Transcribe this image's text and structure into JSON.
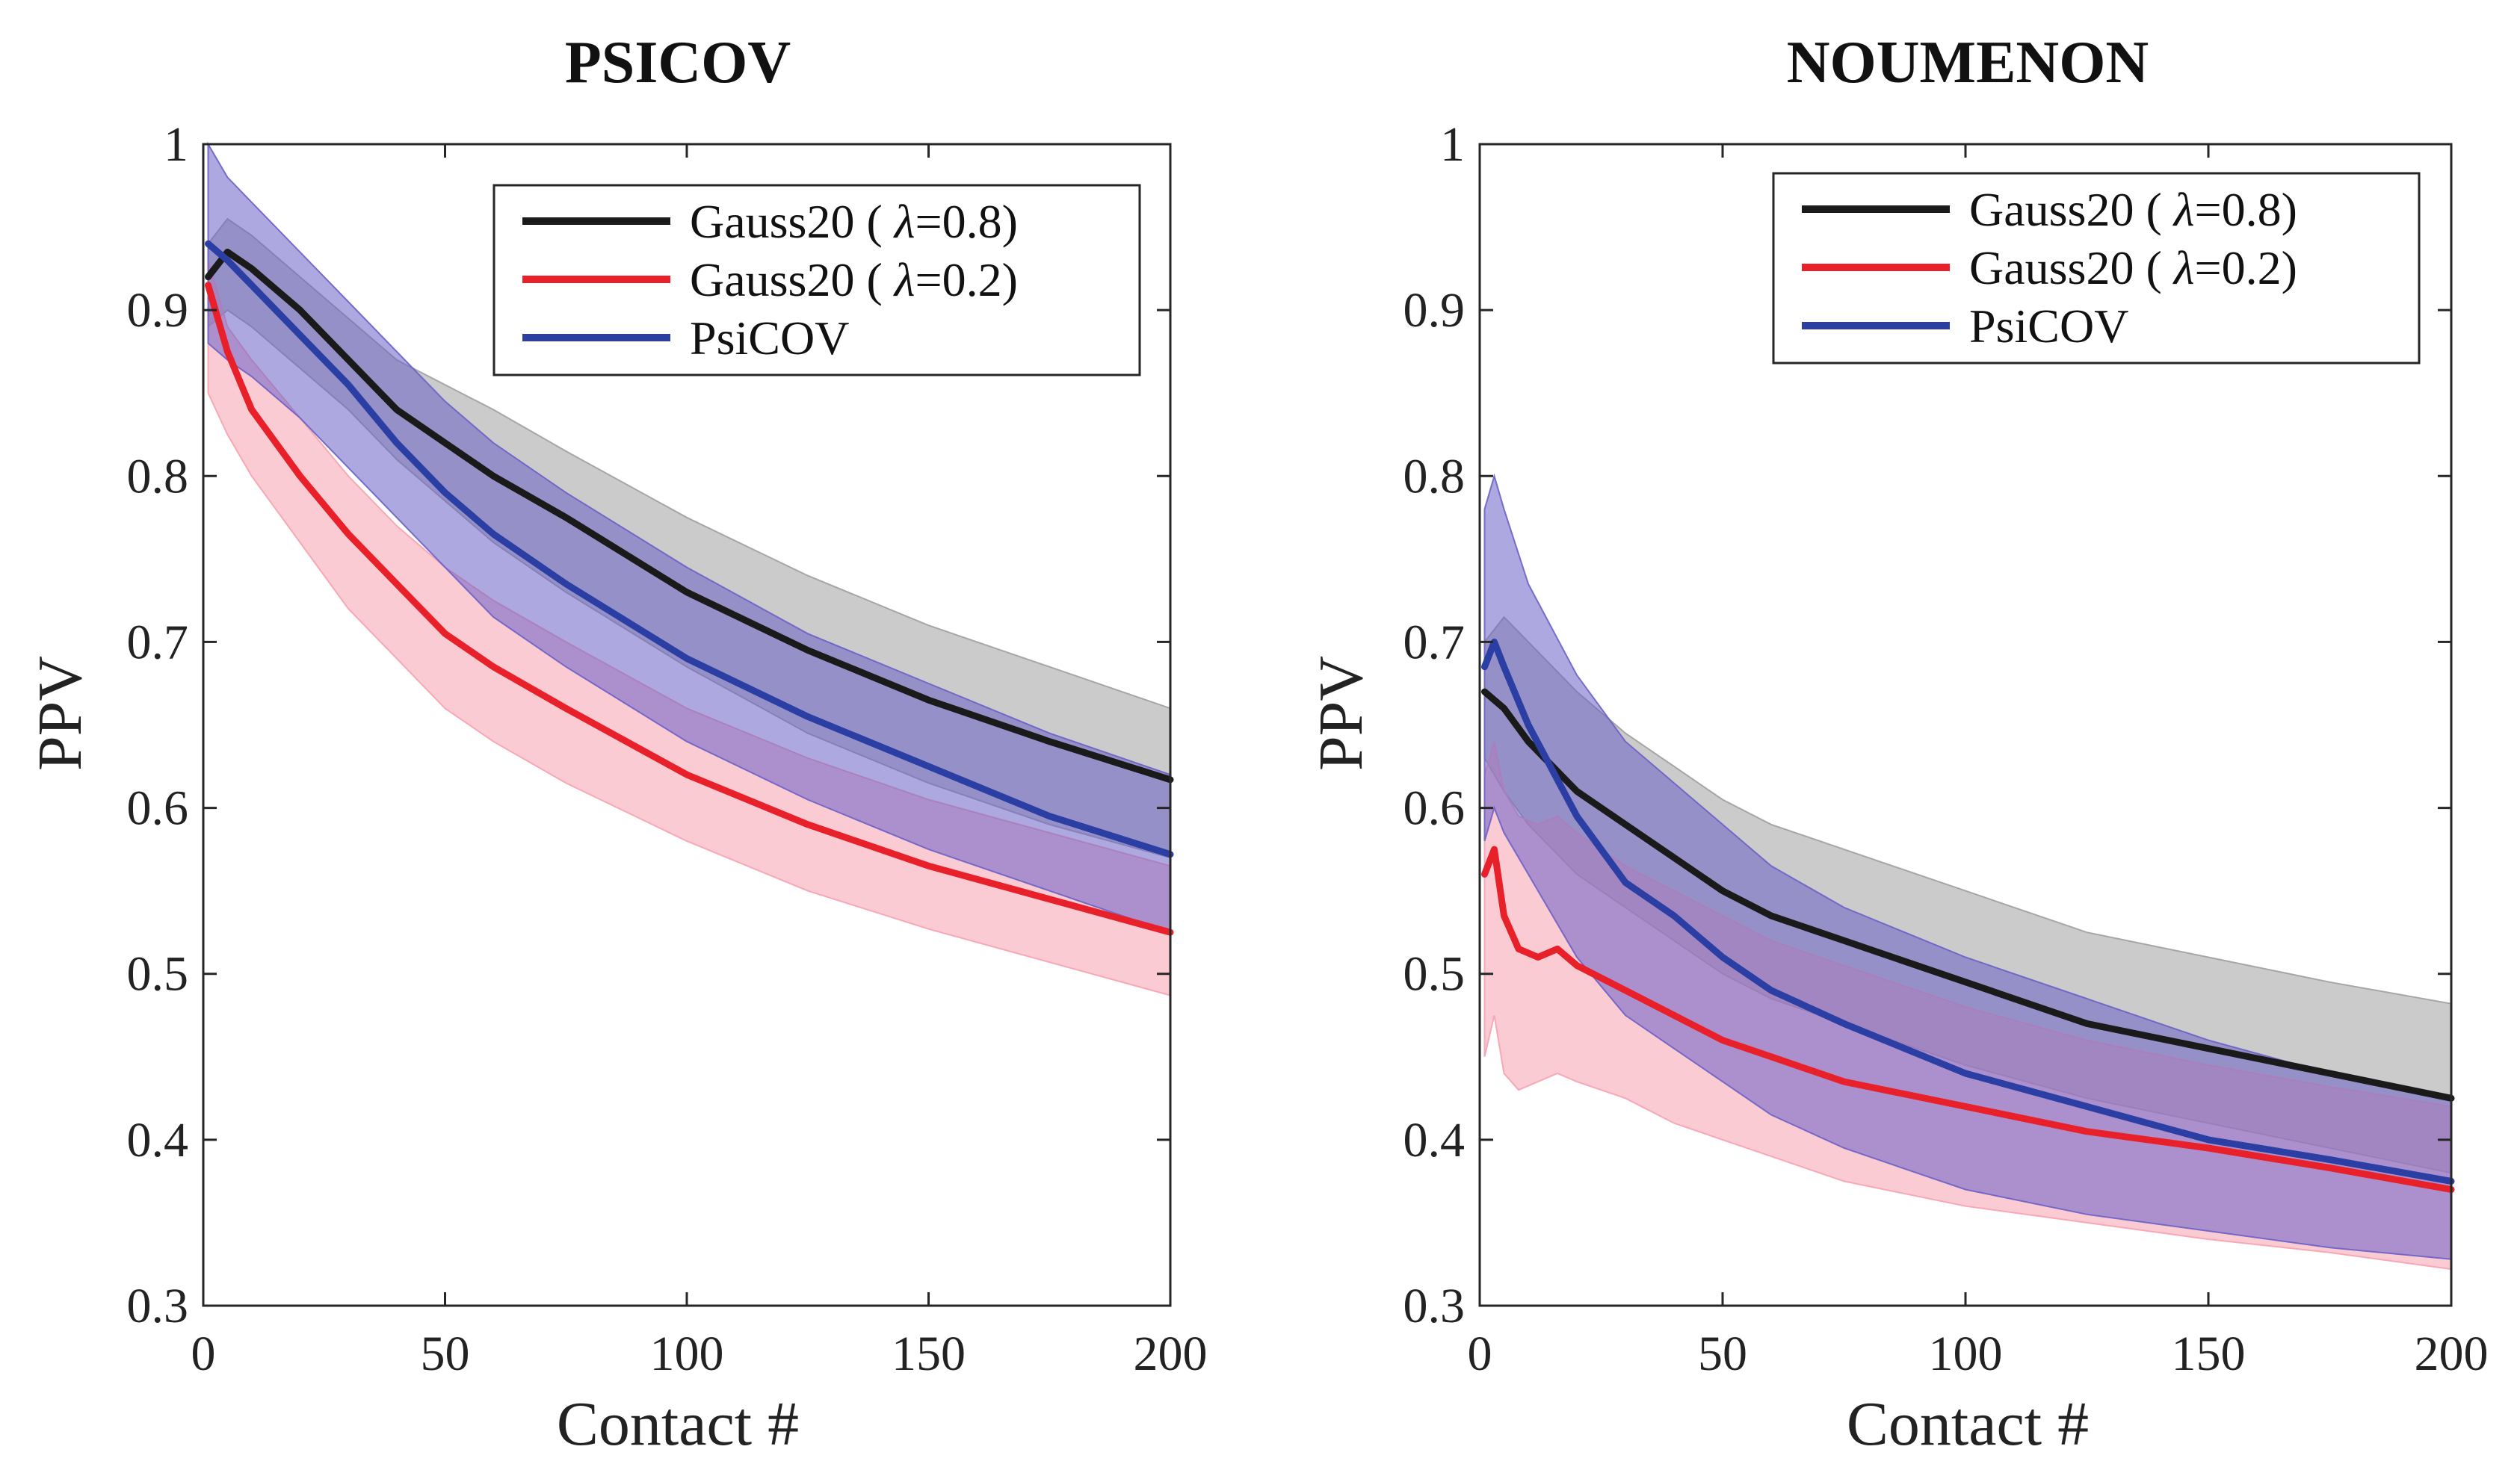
{
  "chart_data": [
    {
      "type": "line",
      "title": "PSICOV",
      "xlabel": "Contact #",
      "ylabel": "PPV",
      "xlim": [
        0,
        200
      ],
      "ylim": [
        0.3,
        1.0
      ],
      "xticks": [
        0,
        50,
        100,
        150,
        200
      ],
      "yticks": [
        0.3,
        0.4,
        0.5,
        0.6,
        0.7,
        0.8,
        0.9,
        1.0
      ],
      "ytick_labels": [
        "0.3",
        "0.4",
        "0.5",
        "0.6",
        "0.7",
        "0.8",
        "0.9",
        "1"
      ],
      "legend_position": "top-right",
      "series": [
        {
          "name": "Gauss20 (λ=0.8)",
          "label_prefix": "Gauss20 ( ",
          "label_symbol": "λ",
          "label_suffix": "=0.8)",
          "color": "#1a1a1a",
          "band_color": "#a0a0a0",
          "x": [
            1,
            5,
            10,
            20,
            30,
            40,
            50,
            60,
            75,
            100,
            125,
            150,
            175,
            200
          ],
          "values": [
            0.92,
            0.935,
            0.925,
            0.9,
            0.87,
            0.84,
            0.82,
            0.8,
            0.775,
            0.73,
            0.695,
            0.665,
            0.64,
            0.617
          ],
          "upper": [
            0.94,
            0.955,
            0.945,
            0.92,
            0.895,
            0.87,
            0.855,
            0.84,
            0.815,
            0.775,
            0.74,
            0.71,
            0.685,
            0.66
          ],
          "lower": [
            0.89,
            0.9,
            0.89,
            0.865,
            0.84,
            0.81,
            0.785,
            0.76,
            0.73,
            0.685,
            0.645,
            0.615,
            0.59,
            0.57
          ]
        },
        {
          "name": "Gauss20 (λ=0.2)",
          "label_prefix": "Gauss20 ( ",
          "label_symbol": "λ",
          "label_suffix": "=0.2)",
          "color": "#e8202a",
          "band_color": "#f7a1b0",
          "x": [
            1,
            5,
            10,
            20,
            30,
            40,
            50,
            60,
            75,
            100,
            125,
            150,
            175,
            200
          ],
          "values": [
            0.915,
            0.875,
            0.84,
            0.8,
            0.765,
            0.735,
            0.705,
            0.685,
            0.66,
            0.62,
            0.59,
            0.565,
            0.545,
            0.525
          ],
          "upper": [
            0.93,
            0.89,
            0.87,
            0.835,
            0.8,
            0.77,
            0.745,
            0.725,
            0.7,
            0.66,
            0.63,
            0.605,
            0.585,
            0.565
          ],
          "lower": [
            0.85,
            0.825,
            0.8,
            0.76,
            0.72,
            0.69,
            0.66,
            0.64,
            0.615,
            0.58,
            0.55,
            0.527,
            0.507,
            0.487
          ]
        },
        {
          "name": "PsiCOV",
          "label_prefix": "PsiCOV",
          "label_symbol": "",
          "label_suffix": "",
          "color": "#2b3ea3",
          "band_color": "#6b61c6",
          "x": [
            1,
            5,
            10,
            20,
            30,
            40,
            50,
            60,
            75,
            100,
            125,
            150,
            175,
            200
          ],
          "values": [
            0.94,
            0.93,
            0.915,
            0.885,
            0.855,
            0.82,
            0.79,
            0.765,
            0.735,
            0.69,
            0.655,
            0.625,
            0.595,
            0.572
          ],
          "upper": [
            1.0,
            0.98,
            0.965,
            0.935,
            0.905,
            0.875,
            0.845,
            0.82,
            0.79,
            0.745,
            0.705,
            0.675,
            0.645,
            0.62
          ],
          "lower": [
            0.88,
            0.87,
            0.86,
            0.835,
            0.805,
            0.775,
            0.745,
            0.715,
            0.685,
            0.64,
            0.605,
            0.575,
            0.55,
            0.525
          ]
        }
      ]
    },
    {
      "type": "line",
      "title": "NOUMENON",
      "xlabel": "Contact #",
      "ylabel": "PPV",
      "xlim": [
        0,
        200
      ],
      "ylim": [
        0.3,
        1.0
      ],
      "xticks": [
        0,
        50,
        100,
        150,
        200
      ],
      "yticks": [
        0.3,
        0.4,
        0.5,
        0.6,
        0.7,
        0.8,
        0.9,
        1.0
      ],
      "ytick_labels": [
        "0.3",
        "0.4",
        "0.5",
        "0.6",
        "0.7",
        "0.8",
        "0.9",
        "1"
      ],
      "legend_position": "top-right",
      "series": [
        {
          "name": "Gauss20 (λ=0.8)",
          "label_prefix": "Gauss20 ( ",
          "label_symbol": "λ",
          "label_suffix": "=0.8)",
          "color": "#1a1a1a",
          "band_color": "#a0a0a0",
          "x": [
            1,
            5,
            10,
            20,
            30,
            40,
            50,
            60,
            75,
            100,
            125,
            150,
            175,
            200
          ],
          "values": [
            0.67,
            0.66,
            0.64,
            0.61,
            0.59,
            0.57,
            0.55,
            0.535,
            0.52,
            0.495,
            0.47,
            0.455,
            0.44,
            0.425
          ],
          "upper": [
            0.7,
            0.715,
            0.7,
            0.67,
            0.645,
            0.625,
            0.605,
            0.59,
            0.575,
            0.55,
            0.525,
            0.51,
            0.495,
            0.482
          ],
          "lower": [
            0.63,
            0.61,
            0.59,
            0.56,
            0.54,
            0.52,
            0.5,
            0.485,
            0.47,
            0.445,
            0.425,
            0.41,
            0.395,
            0.38
          ]
        },
        {
          "name": "Gauss20 (λ=0.2)",
          "label_prefix": "Gauss20 ( ",
          "label_symbol": "λ",
          "label_suffix": "=0.2)",
          "color": "#e8202a",
          "band_color": "#f7a1b0",
          "x": [
            1,
            3,
            5,
            8,
            12,
            16,
            20,
            30,
            40,
            50,
            60,
            75,
            100,
            125,
            150,
            175,
            200
          ],
          "values": [
            0.56,
            0.575,
            0.535,
            0.515,
            0.51,
            0.515,
            0.505,
            0.49,
            0.475,
            0.46,
            0.45,
            0.435,
            0.42,
            0.405,
            0.395,
            0.383,
            0.37
          ],
          "upper": [
            0.62,
            0.64,
            0.61,
            0.595,
            0.59,
            0.595,
            0.585,
            0.565,
            0.55,
            0.535,
            0.52,
            0.505,
            0.48,
            0.46,
            0.445,
            0.432,
            0.42
          ],
          "lower": [
            0.45,
            0.475,
            0.44,
            0.43,
            0.435,
            0.44,
            0.435,
            0.425,
            0.41,
            0.4,
            0.39,
            0.375,
            0.36,
            0.35,
            0.34,
            0.332,
            0.322
          ]
        },
        {
          "name": "PsiCOV",
          "label_prefix": "PsiCOV",
          "label_symbol": "",
          "label_suffix": "",
          "color": "#2b3ea3",
          "band_color": "#6b61c6",
          "x": [
            1,
            3,
            5,
            10,
            20,
            30,
            40,
            50,
            60,
            75,
            100,
            125,
            150,
            175,
            200
          ],
          "values": [
            0.685,
            0.7,
            0.685,
            0.65,
            0.595,
            0.555,
            0.535,
            0.51,
            0.49,
            0.47,
            0.44,
            0.42,
            0.4,
            0.388,
            0.375
          ],
          "upper": [
            0.78,
            0.8,
            0.78,
            0.735,
            0.68,
            0.64,
            0.615,
            0.59,
            0.565,
            0.54,
            0.51,
            0.485,
            0.46,
            0.44,
            0.425
          ],
          "lower": [
            0.58,
            0.6,
            0.585,
            0.56,
            0.51,
            0.475,
            0.455,
            0.435,
            0.415,
            0.395,
            0.37,
            0.355,
            0.345,
            0.335,
            0.328
          ]
        }
      ]
    }
  ]
}
